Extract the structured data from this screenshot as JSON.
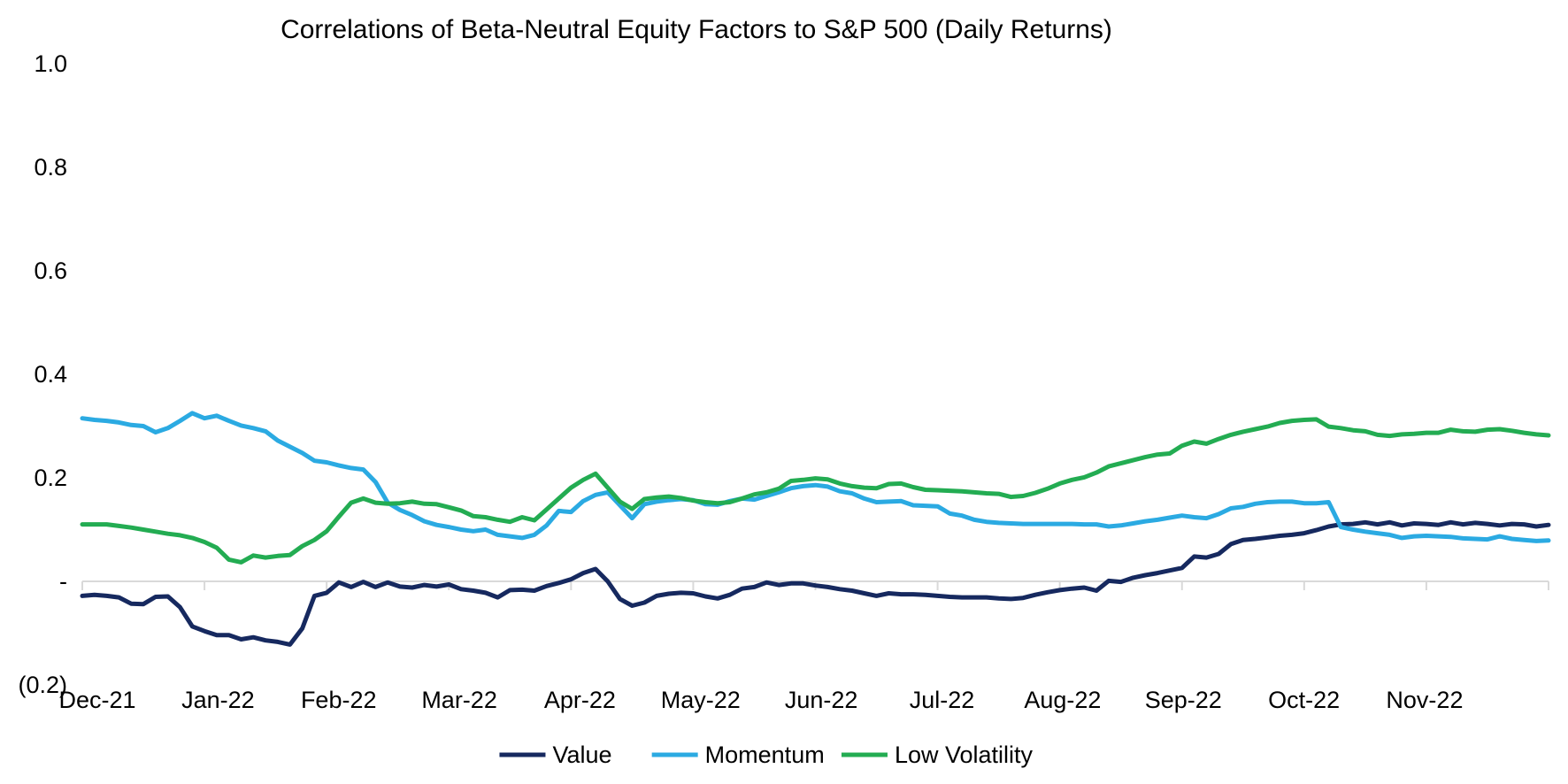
{
  "chart_data": {
    "type": "line",
    "title": "Correlations of Beta-Neutral Equity Factors to S&P 500 (Daily Returns)",
    "xlabel": "",
    "ylabel": "",
    "x_tick_labels": [
      "Dec-21",
      "Jan-22",
      "Feb-22",
      "Mar-22",
      "Apr-22",
      "May-22",
      "Jun-22",
      "Jul-22",
      "Aug-22",
      "Sep-22",
      "Oct-22",
      "Nov-22"
    ],
    "y_tick_labels": [
      "1.0",
      "0.8",
      "0.6",
      "0.4",
      "0.2",
      "-",
      "(0.2)"
    ],
    "y_tick_values": [
      1.0,
      0.8,
      0.6,
      0.4,
      0.2,
      0.0,
      -0.2
    ],
    "ylim": [
      -0.2,
      1.0
    ],
    "x_span": "Dec-2021 through Nov-2022, daily returns sampled ~every 3 days",
    "grid": "zero axis line only, with month tick marks",
    "legend_position": "bottom-center",
    "series": [
      {
        "name": "Value",
        "color": "#16295F",
        "values": [
          -0.028,
          -0.026,
          -0.028,
          -0.031,
          -0.043,
          -0.044,
          -0.03,
          -0.029,
          -0.05,
          -0.087,
          -0.096,
          -0.104,
          -0.104,
          -0.112,
          -0.108,
          -0.114,
          -0.117,
          -0.122,
          -0.091,
          -0.028,
          -0.022,
          -0.002,
          -0.011,
          -0.001,
          -0.011,
          -0.002,
          -0.01,
          -0.012,
          -0.007,
          -0.01,
          -0.006,
          -0.015,
          -0.018,
          -0.022,
          -0.031,
          -0.017,
          -0.016,
          -0.018,
          -0.009,
          -0.003,
          0.004,
          0.016,
          0.024,
          0.0,
          -0.034,
          -0.047,
          -0.041,
          -0.028,
          -0.024,
          -0.022,
          -0.023,
          -0.029,
          -0.033,
          -0.026,
          -0.014,
          -0.011,
          -0.002,
          -0.007,
          -0.004,
          -0.004,
          -0.008,
          -0.011,
          -0.015,
          -0.018,
          -0.023,
          -0.028,
          -0.023,
          -0.025,
          -0.025,
          -0.026,
          -0.028,
          -0.03,
          -0.031,
          -0.031,
          -0.031,
          -0.033,
          -0.034,
          -0.032,
          -0.026,
          -0.021,
          -0.017,
          -0.014,
          -0.012,
          -0.018,
          0.001,
          -0.001,
          0.007,
          0.012,
          0.016,
          0.021,
          0.026,
          0.048,
          0.046,
          0.053,
          0.072,
          0.08,
          0.082,
          0.085,
          0.088,
          0.09,
          0.093,
          0.099,
          0.106,
          0.11,
          0.111,
          0.114,
          0.11,
          0.114,
          0.108,
          0.112,
          0.111,
          0.109,
          0.114,
          0.11,
          0.113,
          0.111,
          0.108,
          0.111,
          0.11,
          0.106,
          0.109
        ]
      },
      {
        "name": "Momentum",
        "color": "#2BAAE2",
        "values": [
          0.315,
          0.312,
          0.31,
          0.307,
          0.302,
          0.3,
          0.288,
          0.296,
          0.31,
          0.325,
          0.315,
          0.32,
          0.31,
          0.301,
          0.296,
          0.29,
          0.272,
          0.26,
          0.248,
          0.233,
          0.23,
          0.224,
          0.219,
          0.216,
          0.192,
          0.152,
          0.138,
          0.128,
          0.116,
          0.109,
          0.105,
          0.1,
          0.097,
          0.1,
          0.09,
          0.087,
          0.084,
          0.09,
          0.108,
          0.136,
          0.134,
          0.155,
          0.167,
          0.172,
          0.147,
          0.122,
          0.149,
          0.154,
          0.157,
          0.159,
          0.157,
          0.149,
          0.148,
          0.155,
          0.16,
          0.158,
          0.165,
          0.172,
          0.18,
          0.184,
          0.186,
          0.183,
          0.174,
          0.17,
          0.16,
          0.153,
          0.154,
          0.155,
          0.147,
          0.146,
          0.145,
          0.131,
          0.127,
          0.119,
          0.115,
          0.113,
          0.112,
          0.111,
          0.111,
          0.111,
          0.111,
          0.111,
          0.11,
          0.11,
          0.106,
          0.108,
          0.112,
          0.116,
          0.119,
          0.123,
          0.127,
          0.124,
          0.122,
          0.13,
          0.141,
          0.144,
          0.15,
          0.153,
          0.154,
          0.154,
          0.151,
          0.151,
          0.153,
          0.105,
          0.1,
          0.096,
          0.093,
          0.09,
          0.084,
          0.087,
          0.088,
          0.087,
          0.086,
          0.083,
          0.082,
          0.081,
          0.087,
          0.082,
          0.08,
          0.078,
          0.079
        ]
      },
      {
        "name": "Low Volatility",
        "color": "#23AC52",
        "values": [
          0.11,
          0.11,
          0.11,
          0.107,
          0.104,
          0.1,
          0.096,
          0.092,
          0.089,
          0.084,
          0.076,
          0.065,
          0.042,
          0.037,
          0.05,
          0.046,
          0.049,
          0.051,
          0.068,
          0.08,
          0.097,
          0.125,
          0.152,
          0.16,
          0.152,
          0.15,
          0.151,
          0.154,
          0.15,
          0.149,
          0.143,
          0.137,
          0.126,
          0.124,
          0.119,
          0.115,
          0.124,
          0.118,
          0.139,
          0.16,
          0.181,
          0.196,
          0.208,
          0.181,
          0.154,
          0.14,
          0.159,
          0.162,
          0.164,
          0.161,
          0.156,
          0.153,
          0.151,
          0.153,
          0.16,
          0.168,
          0.172,
          0.179,
          0.194,
          0.196,
          0.199,
          0.197,
          0.189,
          0.184,
          0.181,
          0.18,
          0.188,
          0.189,
          0.182,
          0.177,
          0.176,
          0.175,
          0.174,
          0.172,
          0.17,
          0.169,
          0.163,
          0.165,
          0.171,
          0.179,
          0.189,
          0.196,
          0.201,
          0.21,
          0.222,
          0.228,
          0.234,
          0.24,
          0.245,
          0.247,
          0.262,
          0.27,
          0.266,
          0.275,
          0.283,
          0.289,
          0.294,
          0.299,
          0.306,
          0.31,
          0.312,
          0.313,
          0.299,
          0.296,
          0.292,
          0.29,
          0.283,
          0.281,
          0.284,
          0.285,
          0.287,
          0.287,
          0.293,
          0.29,
          0.289,
          0.293,
          0.294,
          0.291,
          0.287,
          0.284,
          0.282
        ]
      }
    ]
  },
  "colors": {
    "background": "#FFFFFF",
    "axis_line": "#D9D9D9",
    "text": "#000000",
    "value_line": "#16295F",
    "momentum_line": "#2BAAE2",
    "low_volatility_line": "#23AC52"
  }
}
